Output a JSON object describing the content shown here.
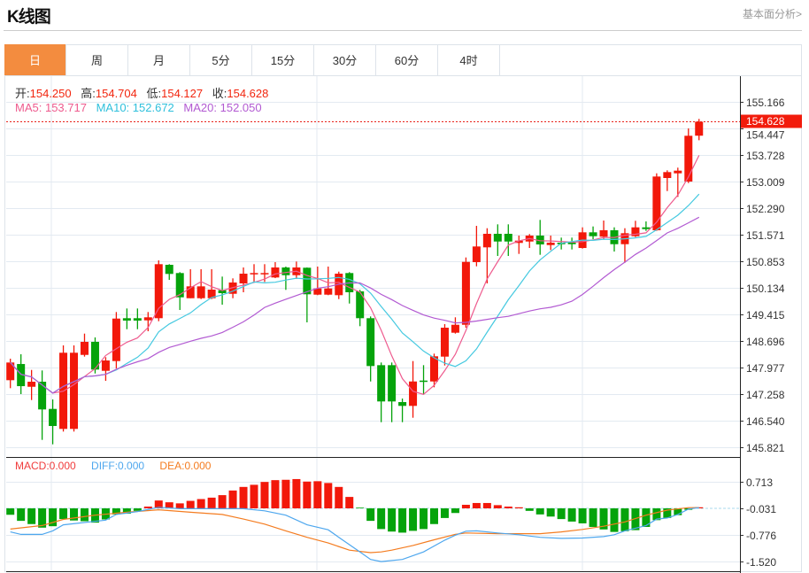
{
  "header": {
    "title": "K线图",
    "link": "基本面分析>"
  },
  "tabs": [
    {
      "label": "日",
      "active": true
    },
    {
      "label": "周"
    },
    {
      "label": "月"
    },
    {
      "label": "5分"
    },
    {
      "label": "15分"
    },
    {
      "label": "30分"
    },
    {
      "label": "60分"
    },
    {
      "label": "4时"
    }
  ],
  "ohlc_info": {
    "open_label": "开:",
    "open": "154.250",
    "high_label": "高:",
    "high": "154.704",
    "low_label": "低:",
    "low": "154.127",
    "close_label": "收:",
    "close": "154.628"
  },
  "ma_info": {
    "ma5_label": "MA5:",
    "ma5": "153.717",
    "ma10_label": "MA10:",
    "ma10": "152.672",
    "ma20_label": "MA20:",
    "ma20": "152.050"
  },
  "macd_info": {
    "macd_label": "MACD:",
    "macd": "0.000",
    "diff_label": "DIFF:",
    "diff": "0.000",
    "dea_label": "DEA:",
    "dea": "0.000"
  },
  "colors": {
    "up": "#f2180a",
    "down": "#05a30b",
    "ma5": "#ee5b8e",
    "ma10": "#45c9e0",
    "ma20": "#b25ad2",
    "diff": "#4ea7ee",
    "dea": "#f47c20",
    "tab_active": "#f38c3f"
  },
  "chart_data": [
    {
      "type": "candlestick",
      "price_axis": {
        "ticks": [
          "155.166",
          "154.447",
          "153.728",
          "153.009",
          "152.290",
          "151.571",
          "150.853",
          "150.134",
          "149.415",
          "148.696",
          "147.977",
          "147.258",
          "146.540",
          "145.821"
        ],
        "range": [
          145.821,
          155.166
        ],
        "position": "right"
      },
      "last_price": "154.628",
      "grid": true,
      "candles_ohlc": [
        [
          147.633,
          148.215,
          147.417,
          148.112
        ],
        [
          148.071,
          148.335,
          147.257,
          147.472
        ],
        [
          147.455,
          147.911,
          147.096,
          147.592
        ],
        [
          147.592,
          147.897,
          146.018,
          146.842
        ],
        [
          146.856,
          147.113,
          145.898,
          146.394
        ],
        [
          146.315,
          148.575,
          146.243,
          148.376
        ],
        [
          146.315,
          148.575,
          146.243,
          148.376
        ],
        [
          148.318,
          148.894,
          148.271,
          148.671
        ],
        [
          148.671,
          148.791,
          147.815,
          147.921
        ],
        [
          147.887,
          148.256,
          147.616,
          148.167
        ],
        [
          148.151,
          149.478,
          147.952,
          149.301
        ],
        [
          149.311,
          149.574,
          149.013,
          149.246
        ],
        [
          149.311,
          149.574,
          149.013,
          149.246
        ],
        [
          149.253,
          149.478,
          148.958,
          149.335
        ],
        [
          149.311,
          150.876,
          149.229,
          150.773
        ],
        [
          150.756,
          150.773,
          150.348,
          150.509
        ],
        [
          150.533,
          150.557,
          149.534,
          149.876
        ],
        [
          149.852,
          150.636,
          149.852,
          150.173
        ],
        [
          149.852,
          150.636,
          149.828,
          150.173
        ],
        [
          149.852,
          150.636,
          149.828,
          150.085
        ],
        [
          150.068,
          150.437,
          149.677,
          149.989
        ],
        [
          149.972,
          150.389,
          149.852,
          150.277
        ],
        [
          150.253,
          150.684,
          150.013,
          150.516
        ],
        [
          150.499,
          150.773,
          150.293,
          150.533
        ],
        [
          150.499,
          150.773,
          150.293,
          150.533
        ],
        [
          150.413,
          150.828,
          150.396,
          150.684
        ],
        [
          150.684,
          150.708,
          150.078,
          150.475
        ],
        [
          150.475,
          150.845,
          150.372,
          150.684
        ],
        [
          150.677,
          150.684,
          149.198,
          149.958
        ],
        [
          149.948,
          150.708,
          149.934,
          150.116
        ],
        [
          149.948,
          150.708,
          149.934,
          150.116
        ],
        [
          149.934,
          150.571,
          149.828,
          150.516
        ],
        [
          150.533,
          150.557,
          149.708,
          150.013
        ],
        [
          150.037,
          150.078,
          149.095,
          149.311
        ],
        [
          149.311,
          149.359,
          147.599,
          148.016
        ],
        [
          148.04,
          148.112,
          146.497,
          147.058
        ],
        [
          148.04,
          148.112,
          146.497,
          147.058
        ],
        [
          147.041,
          147.137,
          146.497,
          146.938
        ],
        [
          146.938,
          148.151,
          146.617,
          147.599
        ],
        [
          147.623,
          148.04,
          147.257,
          147.599
        ],
        [
          147.599,
          148.352,
          147.441,
          148.28
        ],
        [
          148.271,
          149.15,
          148.031,
          149.054
        ],
        [
          148.918,
          149.335,
          148.894,
          149.133
        ],
        [
          149.133,
          150.955,
          149.054,
          150.835
        ],
        [
          150.828,
          151.81,
          150.715,
          151.252
        ],
        [
          151.228,
          151.746,
          150.253,
          151.595
        ],
        [
          151.595,
          151.851,
          150.996,
          151.386
        ],
        [
          151.595,
          151.851,
          150.996,
          151.386
        ],
        [
          151.348,
          151.547,
          151.051,
          151.41
        ],
        [
          151.386,
          151.588,
          151.211,
          151.547
        ],
        [
          151.547,
          151.971,
          151.027,
          151.307
        ],
        [
          151.29,
          151.547,
          151.156,
          151.355
        ],
        [
          151.355,
          151.492,
          151.171,
          151.314
        ],
        [
          151.355,
          151.492,
          151.171,
          151.314
        ],
        [
          151.211,
          151.77,
          151.195,
          151.635
        ],
        [
          151.635,
          151.794,
          151.451,
          151.53
        ],
        [
          151.516,
          151.954,
          151.451,
          151.691
        ],
        [
          151.691,
          151.77,
          151.115,
          151.314
        ],
        [
          151.314,
          151.746,
          150.811,
          151.611
        ],
        [
          151.53,
          151.947,
          151.506,
          151.77
        ],
        [
          151.77,
          151.93,
          151.674,
          151.722
        ],
        [
          151.691,
          153.232,
          151.674,
          153.145
        ],
        [
          153.105,
          153.313,
          152.752,
          153.265
        ],
        [
          153.232,
          153.385,
          152.594,
          153.304
        ],
        [
          153.009,
          154.447,
          152.968,
          154.248
        ],
        [
          154.25,
          154.704,
          154.127,
          154.628
        ]
      ],
      "moving_averages": [
        {
          "name": "MA5",
          "period": 5
        },
        {
          "name": "MA10",
          "period": 10
        },
        {
          "name": "MA20",
          "period": 20
        }
      ]
    },
    {
      "type": "macd",
      "axis": {
        "ticks": [
          "0.713",
          "-0.031",
          "-0.776",
          "-1.520"
        ],
        "range": [
          -1.52,
          0.713
        ],
        "position": "right"
      },
      "histogram": [
        -0.21,
        -0.38,
        -0.47,
        -0.57,
        -0.53,
        -0.33,
        -0.37,
        -0.39,
        -0.43,
        -0.34,
        -0.2,
        -0.18,
        -0.1,
        0.02,
        0.19,
        0.14,
        0.11,
        0.18,
        0.23,
        0.27,
        0.34,
        0.47,
        0.57,
        0.63,
        0.71,
        0.76,
        0.77,
        0.79,
        0.72,
        0.73,
        0.68,
        0.57,
        0.29,
        -0.01,
        -0.38,
        -0.61,
        -0.68,
        -0.71,
        -0.66,
        -0.61,
        -0.47,
        -0.3,
        -0.16,
        0.07,
        0.12,
        0.12,
        0.06,
        0.02,
        0.0,
        -0.1,
        -0.2,
        -0.26,
        -0.33,
        -0.4,
        -0.45,
        -0.55,
        -0.62,
        -0.69,
        -0.67,
        -0.64,
        -0.55,
        -0.36,
        -0.3,
        -0.22,
        -0.07,
        0.0
      ],
      "diff_points": [
        [
          0,
          -0.69
        ],
        [
          1,
          -0.76
        ],
        [
          3,
          -0.76
        ],
        [
          4,
          -0.66
        ],
        [
          5,
          -0.49
        ],
        [
          9,
          -0.36
        ],
        [
          10,
          -0.2
        ],
        [
          12,
          -0.12
        ],
        [
          14,
          0.0
        ],
        [
          16,
          -0.04
        ],
        [
          22,
          -0.04
        ],
        [
          24,
          -0.1
        ],
        [
          26,
          -0.22
        ],
        [
          28,
          -0.49
        ],
        [
          30,
          -0.63
        ],
        [
          31,
          -0.84
        ],
        [
          33,
          -1.25
        ],
        [
          34,
          -1.46
        ],
        [
          35,
          -1.52
        ],
        [
          37,
          -1.46
        ],
        [
          39,
          -1.25
        ],
        [
          41,
          -0.92
        ],
        [
          42,
          -0.78
        ],
        [
          43,
          -0.67
        ],
        [
          44,
          -0.66
        ],
        [
          46,
          -0.72
        ],
        [
          48,
          -0.77
        ],
        [
          50,
          -0.84
        ],
        [
          52,
          -0.87
        ],
        [
          54,
          -0.86
        ],
        [
          56,
          -0.82
        ],
        [
          57,
          -0.77
        ],
        [
          58,
          -0.66
        ],
        [
          60,
          -0.51
        ],
        [
          61,
          -0.33
        ],
        [
          62,
          -0.3
        ],
        [
          63,
          -0.2
        ],
        [
          64,
          -0.05
        ],
        [
          65,
          -0.01
        ]
      ],
      "dea_points": [
        [
          0,
          -0.61
        ],
        [
          3,
          -0.51
        ],
        [
          5,
          -0.34
        ],
        [
          8,
          -0.22
        ],
        [
          11,
          -0.14
        ],
        [
          14,
          -0.07
        ],
        [
          17,
          -0.14
        ],
        [
          20,
          -0.2
        ],
        [
          22,
          -0.33
        ],
        [
          24,
          -0.47
        ],
        [
          26,
          -0.66
        ],
        [
          28,
          -0.84
        ],
        [
          30,
          -1.0
        ],
        [
          32,
          -1.2
        ],
        [
          34,
          -1.27
        ],
        [
          35,
          -1.25
        ],
        [
          36,
          -1.2
        ],
        [
          38,
          -1.07
        ],
        [
          40,
          -0.91
        ],
        [
          42,
          -0.76
        ],
        [
          43,
          -0.72
        ],
        [
          46,
          -0.74
        ],
        [
          50,
          -0.74
        ],
        [
          52,
          -0.69
        ],
        [
          54,
          -0.62
        ],
        [
          56,
          -0.53
        ],
        [
          58,
          -0.41
        ],
        [
          60,
          -0.22
        ],
        [
          62,
          -0.08
        ],
        [
          64,
          -0.01
        ],
        [
          65,
          -0.01
        ]
      ]
    }
  ]
}
